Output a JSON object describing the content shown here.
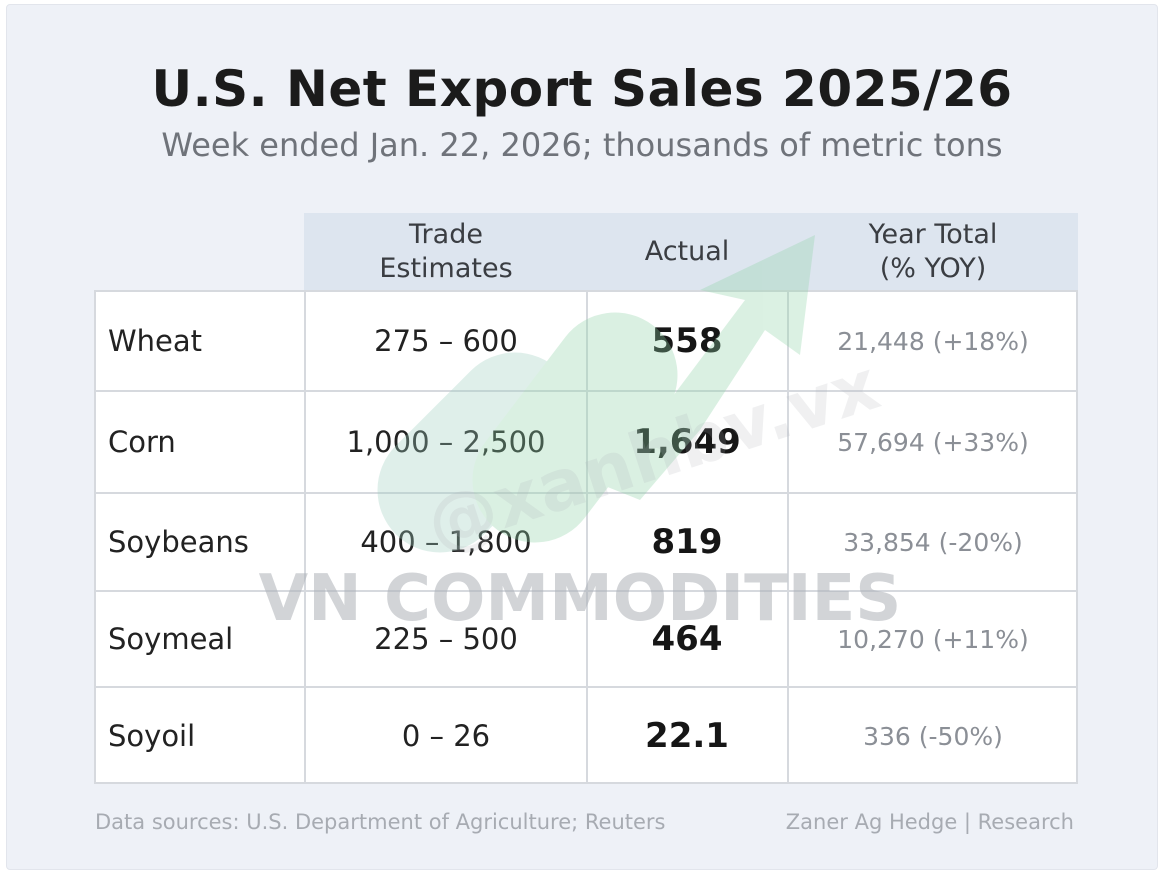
{
  "title": "U.S. Net Export Sales 2025/26",
  "subtitle": "Week ended Jan. 22, 2026; thousands of metric tons",
  "columns": {
    "estimates": [
      "Trade",
      "Estimates"
    ],
    "actual": "Actual",
    "year_total": [
      "Year Total",
      "(% YOY)"
    ]
  },
  "rows": [
    {
      "commodity": "Wheat",
      "estimate": "275 – 600",
      "actual": "558",
      "year_total": "21,448 (+18%)"
    },
    {
      "commodity": "Corn",
      "estimate": "1,000 – 2,500",
      "actual": "1,649",
      "year_total": "57,694 (+33%)"
    },
    {
      "commodity": "Soybeans",
      "estimate": "400 – 1,800",
      "actual": "819",
      "year_total": "33,854 (-20%)"
    },
    {
      "commodity": "Soymeal",
      "estimate": "225 – 500",
      "actual": "464",
      "year_total": "10,270 (+11%)"
    },
    {
      "commodity": "Soyoil",
      "estimate": "0 – 26",
      "actual": "22.1",
      "year_total": "336 (-50%)"
    }
  ],
  "watermark": {
    "text": "VN COMMODITIES",
    "handle": "@xanhbv.vx",
    "colors": {
      "green": "#8fd3a8",
      "teal": "#9ecfc0",
      "gray": "#aeb2b8"
    }
  },
  "footer": {
    "sources": "Data sources: U.S. Department of Agriculture; Reuters",
    "credit": "Zaner Ag Hedge | Research"
  }
}
